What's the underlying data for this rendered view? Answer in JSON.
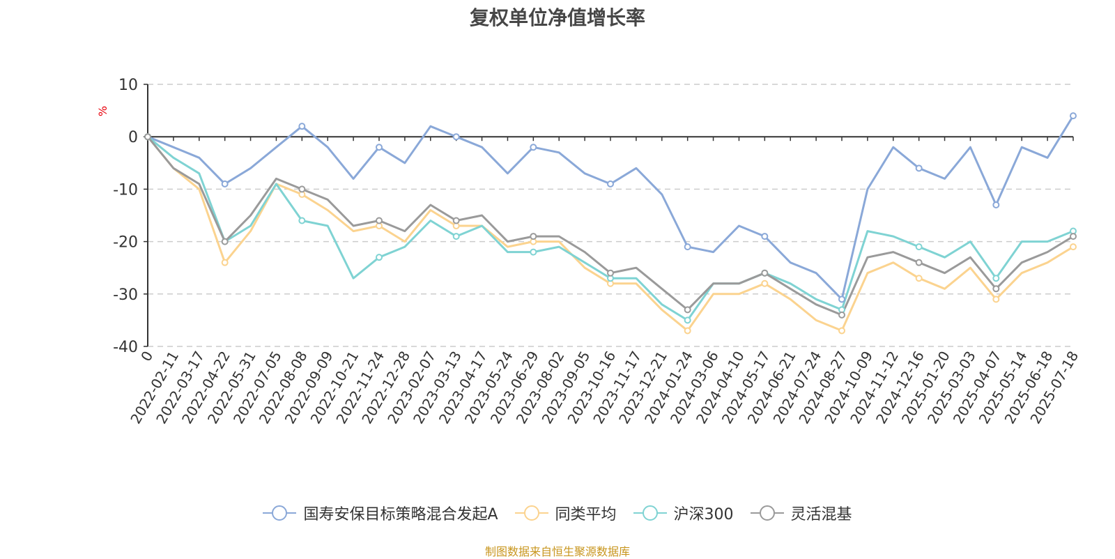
{
  "chart_data": {
    "type": "line",
    "title": "复权单位净值增长率",
    "ylabel": "%",
    "ylim": [
      -40,
      10
    ],
    "yticks": [
      10,
      0,
      -10,
      -20,
      -30,
      -40
    ],
    "grid": true,
    "legend_position": "bottom-center",
    "source": "制图数据来自恒生聚源数据库",
    "x_labels": [
      "0",
      "2022-02-11",
      "2022-03-17",
      "2022-04-22",
      "2022-05-31",
      "2022-07-05",
      "2022-08-08",
      "2022-09-09",
      "2022-10-21",
      "2022-11-24",
      "2022-12-28",
      "2023-02-07",
      "2023-03-13",
      "2023-04-17",
      "2023-05-24",
      "2023-06-29",
      "2023-08-02",
      "2023-09-05",
      "2023-10-16",
      "2023-11-17",
      "2023-12-21",
      "2024-01-24",
      "2024-03-06",
      "2024-04-10",
      "2024-05-17",
      "2024-06-21",
      "2024-07-24",
      "2024-08-27",
      "2024-10-09",
      "2024-11-12",
      "2024-12-16",
      "2025-01-20",
      "2025-03-03",
      "2025-04-07",
      "2025-05-14",
      "2025-06-18",
      "2025-07-18"
    ],
    "series": [
      {
        "name": "国寿安保目标策略混合发起A",
        "color": "#8aa8d8",
        "values": [
          0,
          -2,
          -4,
          -9,
          -6,
          -2,
          2,
          -2,
          -8,
          -2,
          -5,
          2,
          0,
          -2,
          -7,
          -2,
          -3,
          -7,
          -9,
          -6,
          -11,
          -21,
          -22,
          -17,
          -19,
          -24,
          -26,
          -31,
          -10,
          -2,
          -6,
          -8,
          -2,
          -13,
          -2,
          -4,
          4
        ]
      },
      {
        "name": "同类平均",
        "color": "#fbd38f",
        "values": [
          0,
          -6,
          -10,
          -24,
          -18,
          -9,
          -11,
          -14,
          -18,
          -17,
          -20,
          -14,
          -17,
          -17,
          -21,
          -20,
          -20,
          -25,
          -28,
          -28,
          -33,
          -37,
          -30,
          -30,
          -28,
          -31,
          -35,
          -37,
          -26,
          -24,
          -27,
          -29,
          -25,
          -31,
          -26,
          -24,
          -21
        ]
      },
      {
        "name": "沪深300",
        "color": "#7fd3d3",
        "values": [
          0,
          -4,
          -7,
          -20,
          -17,
          -9,
          -16,
          -17,
          -27,
          -23,
          -21,
          -16,
          -19,
          -17,
          -22,
          -22,
          -21,
          -24,
          -27,
          -27,
          -32,
          -35,
          -28,
          -28,
          -26,
          -28,
          -31,
          -33,
          -18,
          -19,
          -21,
          -23,
          -20,
          -27,
          -20,
          -20,
          -18
        ]
      },
      {
        "name": "灵活混基",
        "color": "#9a9a9a",
        "values": [
          0,
          -6,
          -9,
          -20,
          -15,
          -8,
          -10,
          -12,
          -17,
          -16,
          -18,
          -13,
          -16,
          -15,
          -20,
          -19,
          -19,
          -22,
          -26,
          -25,
          -29,
          -33,
          -28,
          -28,
          -26,
          -29,
          -32,
          -34,
          -23,
          -22,
          -24,
          -26,
          -23,
          -29,
          -24,
          -22,
          -19
        ]
      }
    ]
  }
}
